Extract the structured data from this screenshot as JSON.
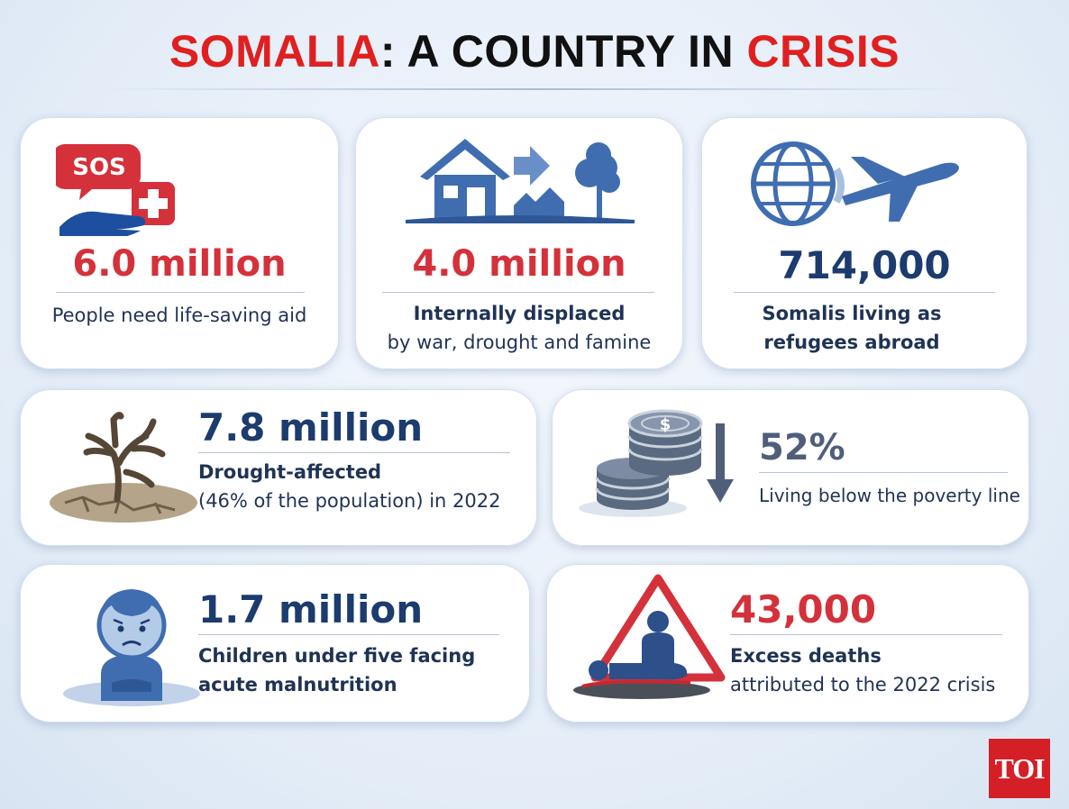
{
  "title": {
    "part1": "SOMALIA",
    "part2": ": A COUNTRY IN ",
    "part3": "CRISIS"
  },
  "cards": [
    {
      "number": "6.0 million",
      "line1": "People need life-saving aid",
      "icon": "sos-hand-icon"
    },
    {
      "number": "4.0 million",
      "line1": "Internally displaced",
      "line2": "by war, drought and famine",
      "icon": "house-displacement-icon"
    },
    {
      "number": "714,000",
      "line1": "Somalis living as",
      "line2": "refugees abroad",
      "icon": "globe-plane-icon"
    },
    {
      "number": "7.8 million",
      "line1": "Drought-affected",
      "line2": "(46% of the population) in 2022",
      "icon": "dead-tree-icon"
    },
    {
      "number": "52%",
      "line1": "Living below the poverty line",
      "icon": "coins-down-arrow-icon"
    },
    {
      "number": "1.7 million",
      "line1": "Children under five facing",
      "line2": "acute malnutrition",
      "icon": "sad-child-icon"
    },
    {
      "number": "43,000",
      "line1": "Excess deaths",
      "line2": "attributed to the 2022 crisis",
      "icon": "warning-deaths-icon"
    }
  ],
  "logo": "TOI",
  "colors": {
    "red": "#d4313a",
    "navy": "#1c3b6e",
    "icon_blue": "#3f6db0",
    "logo_red": "#d51f26"
  }
}
